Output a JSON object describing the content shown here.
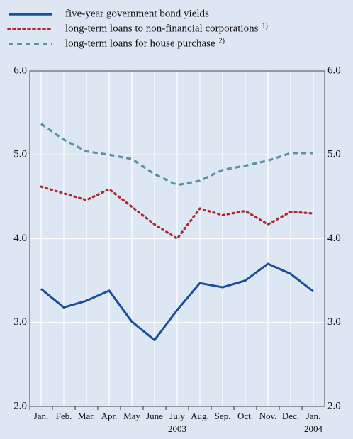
{
  "chart_data": {
    "type": "line",
    "categories": [
      "Jan.",
      "Feb.",
      "Mar.",
      "Apr.",
      "May",
      "June",
      "July",
      "Aug.",
      "Sep.",
      "Oct.",
      "Nov.",
      "Dec.",
      "Jan."
    ],
    "year_labels": [
      "2003",
      "2004"
    ],
    "series": [
      {
        "name": "five-year government bond yields",
        "color": "#1a4f9c",
        "style": "solid",
        "values": [
          3.4,
          3.18,
          3.26,
          3.38,
          3.01,
          2.79,
          3.15,
          3.47,
          3.42,
          3.5,
          3.7,
          3.58,
          3.37
        ]
      },
      {
        "name": "long-term loans to non-financial corporations",
        "footnote": "1)",
        "color": "#b0282a",
        "style": "dotted",
        "values": [
          4.62,
          4.54,
          4.46,
          4.59,
          4.38,
          4.17,
          4.0,
          4.36,
          4.28,
          4.33,
          4.17,
          4.32,
          4.3
        ]
      },
      {
        "name": "long-term loans for house purchase",
        "footnote": "2)",
        "color": "#5a93a6",
        "style": "dashed",
        "values": [
          5.37,
          5.18,
          5.04,
          5.0,
          4.95,
          4.77,
          4.64,
          4.69,
          4.82,
          4.87,
          4.93,
          5.02,
          5.02
        ]
      }
    ],
    "ylim": [
      2,
      6
    ],
    "yticks": [
      {
        "value": 2,
        "label": "2.0"
      },
      {
        "value": 3,
        "label": "3.0"
      },
      {
        "value": 4,
        "label": "4.0"
      },
      {
        "value": 5,
        "label": "5.0"
      },
      {
        "value": 6,
        "label": "6.0"
      }
    ],
    "grid": true
  }
}
